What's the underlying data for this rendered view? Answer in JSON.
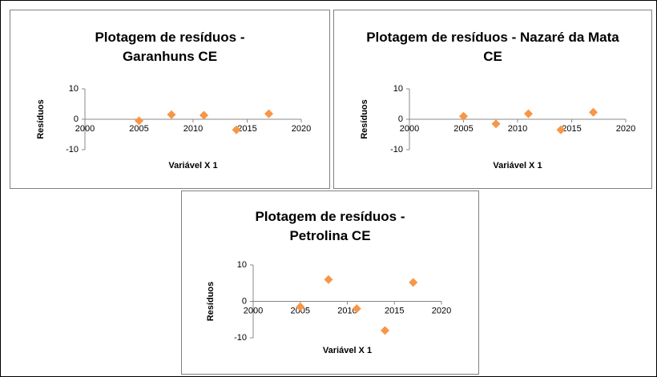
{
  "chart_data": [
    {
      "type": "scatter",
      "title": "Plotagem de resíduos - Garanhuns CE",
      "x_label": "Variável X 1",
      "y_label": "Resíduos",
      "x": [
        2005,
        2008,
        2011,
        2014,
        2017
      ],
      "values": [
        -0.5,
        1.5,
        1.3,
        -3.5,
        1.8
      ],
      "color": "#f79646",
      "xlim": [
        2000,
        2020
      ],
      "xticks": [
        2000,
        2005,
        2010,
        2015,
        2020
      ],
      "ylim": [
        -10,
        10
      ],
      "yticks": [
        -10,
        0,
        10
      ]
    },
    {
      "type": "scatter",
      "title": "Plotagem de resíduos - Nazaré da Mata CE",
      "x_label": "Variável X 1",
      "y_label": "Resíduos",
      "x": [
        2005,
        2008,
        2011,
        2014,
        2017
      ],
      "values": [
        1,
        -1.5,
        1.8,
        -3.5,
        2.3
      ],
      "color": "#f79646",
      "xlim": [
        2000,
        2020
      ],
      "xticks": [
        2000,
        2005,
        2010,
        2015,
        2020
      ],
      "ylim": [
        -10,
        10
      ],
      "yticks": [
        -10,
        0,
        10
      ]
    },
    {
      "type": "scatter",
      "title": "Plotagem de resíduos - Petrolina CE",
      "x_label": "Variável X 1",
      "y_label": "Resíduos",
      "x": [
        2005,
        2008,
        2011,
        2014,
        2017
      ],
      "values": [
        -1.5,
        6,
        -2,
        -8,
        5.2
      ],
      "color": "#f79646",
      "xlim": [
        2000,
        2020
      ],
      "xticks": [
        2000,
        2005,
        2010,
        2015,
        2020
      ],
      "ylim": [
        -10,
        10
      ],
      "yticks": [
        -10,
        0,
        10
      ]
    }
  ]
}
